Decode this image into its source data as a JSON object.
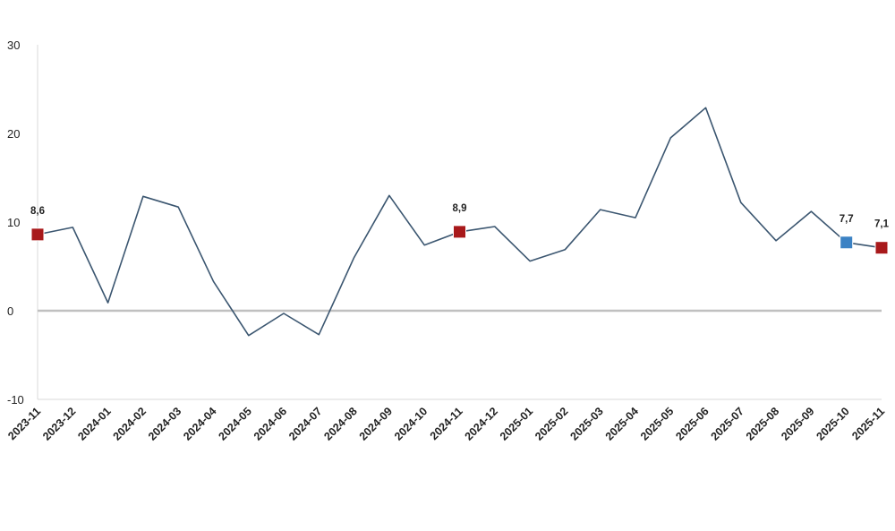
{
  "chart_data": {
    "type": "line",
    "title": "",
    "xlabel": "",
    "ylabel": "",
    "categories": [
      "2023-11",
      "2023-12",
      "2024-01",
      "2024-02",
      "2024-03",
      "2024-04",
      "2024-05",
      "2024-06",
      "2024-07",
      "2024-08",
      "2024-09",
      "2024-10",
      "2024-11",
      "2024-12",
      "2025-01",
      "2025-02",
      "2025-03",
      "2025-04",
      "2025-05",
      "2025-06",
      "2025-07",
      "2025-08",
      "2025-09",
      "2025-10",
      "2025-11"
    ],
    "series": [
      {
        "values": [
          8.6,
          9.4,
          0.9,
          12.9,
          11.7,
          3.3,
          -2.8,
          -0.3,
          -2.7,
          6.0,
          13.0,
          7.4,
          8.9,
          9.5,
          5.6,
          6.9,
          11.4,
          10.5,
          19.5,
          22.9,
          12.2,
          7.9,
          11.2,
          7.7,
          7.1
        ],
        "color": "#3b5670"
      }
    ],
    "ylim": [
      -10,
      30
    ],
    "yticks": [
      -10,
      0,
      10,
      20,
      30
    ],
    "zero_line_color": "#c0c0c0",
    "grid": false,
    "legend": "none",
    "highlighted_points": [
      {
        "index": 0,
        "label": "8,6",
        "color": "#a8191b"
      },
      {
        "index": 12,
        "label": "8,9",
        "color": "#a8191b"
      },
      {
        "index": 23,
        "label": "7,7",
        "color": "#3b82c4"
      },
      {
        "index": 24,
        "label": "7,1",
        "color": "#a8191b"
      }
    ]
  }
}
